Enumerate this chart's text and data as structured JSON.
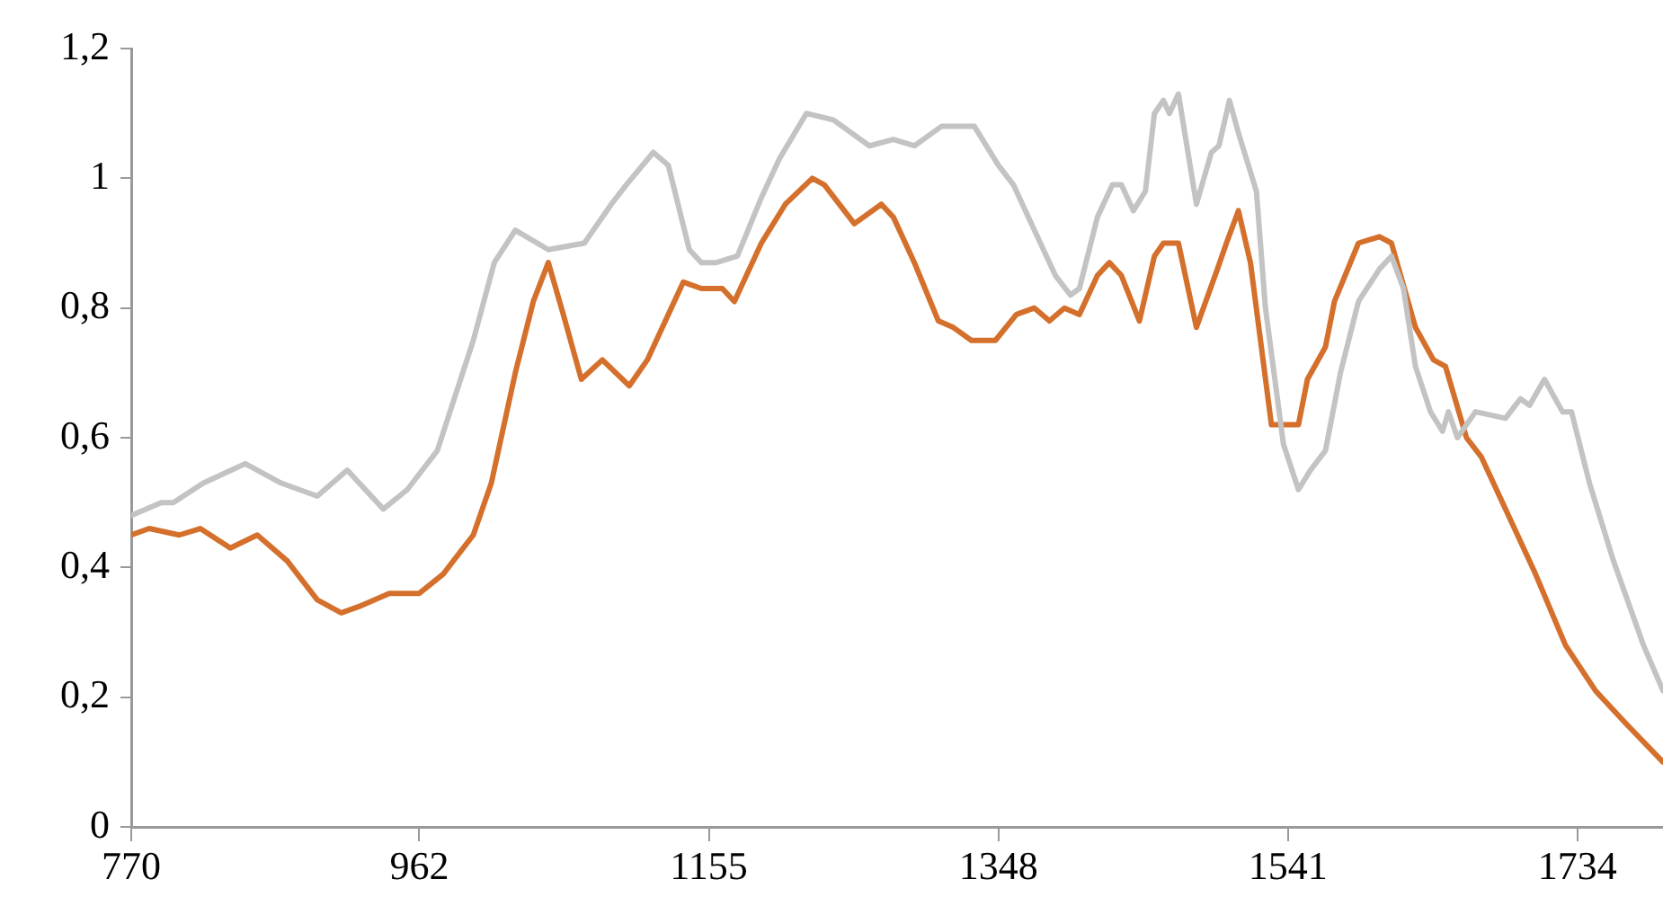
{
  "chart_data": {
    "type": "line",
    "xlim": [
      770,
      1791
    ],
    "xticks": [
      770,
      962,
      1155,
      1348,
      1541,
      1734
    ],
    "ylim": [
      0,
      1.2
    ],
    "yticks": [
      {
        "value": 0,
        "label": "0"
      },
      {
        "value": 0.2,
        "label": "0,2"
      },
      {
        "value": 0.4,
        "label": "0,4"
      },
      {
        "value": 0.6,
        "label": "0,6"
      },
      {
        "value": 0.8,
        "label": "0,8"
      },
      {
        "value": 1,
        "label": "1"
      },
      {
        "value": 1.2,
        "label": "1,2"
      }
    ],
    "grid": false,
    "legend": false,
    "marker": "none",
    "line_style": "solid",
    "series": [
      {
        "color": "#c3c3c3",
        "x": [
          770,
          790,
          798,
          818,
          846,
          870,
          894,
          914,
          938,
          954,
          974,
          998,
          1012,
          1026,
          1048,
          1072,
          1090,
          1100,
          1118,
          1128,
          1142,
          1150,
          1160,
          1174,
          1190,
          1202,
          1220,
          1238,
          1262,
          1278,
          1292,
          1310,
          1332,
          1348,
          1358,
          1374,
          1386,
          1396,
          1402,
          1414,
          1424,
          1430,
          1438,
          1446,
          1452,
          1458,
          1462,
          1468,
          1480,
          1490,
          1495,
          1502,
          1508,
          1520,
          1526,
          1538,
          1548,
          1556,
          1566,
          1576,
          1588,
          1602,
          1610,
          1618,
          1626,
          1636,
          1644,
          1648,
          1654,
          1666,
          1686,
          1696,
          1702,
          1712,
          1724,
          1730,
          1742,
          1758,
          1778,
          1791
        ],
        "values": [
          0.48,
          0.5,
          0.5,
          0.53,
          0.56,
          0.53,
          0.51,
          0.55,
          0.49,
          0.52,
          0.58,
          0.75,
          0.87,
          0.92,
          0.89,
          0.9,
          0.96,
          0.99,
          1.04,
          1.02,
          0.89,
          0.87,
          0.87,
          0.88,
          0.97,
          1.03,
          1.1,
          1.09,
          1.05,
          1.06,
          1.05,
          1.08,
          1.08,
          1.02,
          0.99,
          0.91,
          0.85,
          0.82,
          0.83,
          0.94,
          0.99,
          0.99,
          0.95,
          0.98,
          1.1,
          1.12,
          1.1,
          1.13,
          0.96,
          1.04,
          1.05,
          1.12,
          1.07,
          0.98,
          0.8,
          0.59,
          0.52,
          0.55,
          0.58,
          0.7,
          0.81,
          0.86,
          0.88,
          0.83,
          0.71,
          0.64,
          0.61,
          0.64,
          0.6,
          0.64,
          0.63,
          0.66,
          0.65,
          0.69,
          0.64,
          0.64,
          0.53,
          0.41,
          0.28,
          0.21
        ]
      },
      {
        "color": "#d4702c",
        "x": [
          770,
          782,
          802,
          816,
          836,
          854,
          874,
          894,
          910,
          922,
          942,
          962,
          978,
          998,
          1010,
          1026,
          1038,
          1048,
          1058,
          1070,
          1084,
          1102,
          1114,
          1128,
          1138,
          1150,
          1164,
          1172,
          1190,
          1206,
          1224,
          1232,
          1252,
          1270,
          1278,
          1292,
          1308,
          1318,
          1330,
          1346,
          1360,
          1372,
          1382,
          1392,
          1402,
          1414,
          1422,
          1430,
          1442,
          1452,
          1458,
          1464,
          1468,
          1480,
          1494,
          1500,
          1508,
          1516,
          1530,
          1548,
          1554,
          1566,
          1572,
          1588,
          1602,
          1610,
          1626,
          1638,
          1646,
          1660,
          1670,
          1690,
          1706,
          1726,
          1746,
          1766,
          1791
        ],
        "values": [
          0.45,
          0.46,
          0.45,
          0.46,
          0.43,
          0.45,
          0.41,
          0.35,
          0.33,
          0.34,
          0.36,
          0.36,
          0.39,
          0.45,
          0.53,
          0.7,
          0.81,
          0.87,
          0.79,
          0.69,
          0.72,
          0.68,
          0.72,
          0.79,
          0.84,
          0.83,
          0.83,
          0.81,
          0.9,
          0.96,
          1,
          0.99,
          0.93,
          0.96,
          0.94,
          0.87,
          0.78,
          0.77,
          0.75,
          0.75,
          0.79,
          0.8,
          0.78,
          0.8,
          0.79,
          0.85,
          0.87,
          0.85,
          0.78,
          0.88,
          0.9,
          0.9,
          0.9,
          0.77,
          0.86,
          0.9,
          0.95,
          0.87,
          0.62,
          0.62,
          0.69,
          0.74,
          0.81,
          0.9,
          0.91,
          0.9,
          0.77,
          0.72,
          0.71,
          0.6,
          0.57,
          0.47,
          0.39,
          0.28,
          0.21,
          0.16,
          0.1
        ]
      }
    ]
  }
}
